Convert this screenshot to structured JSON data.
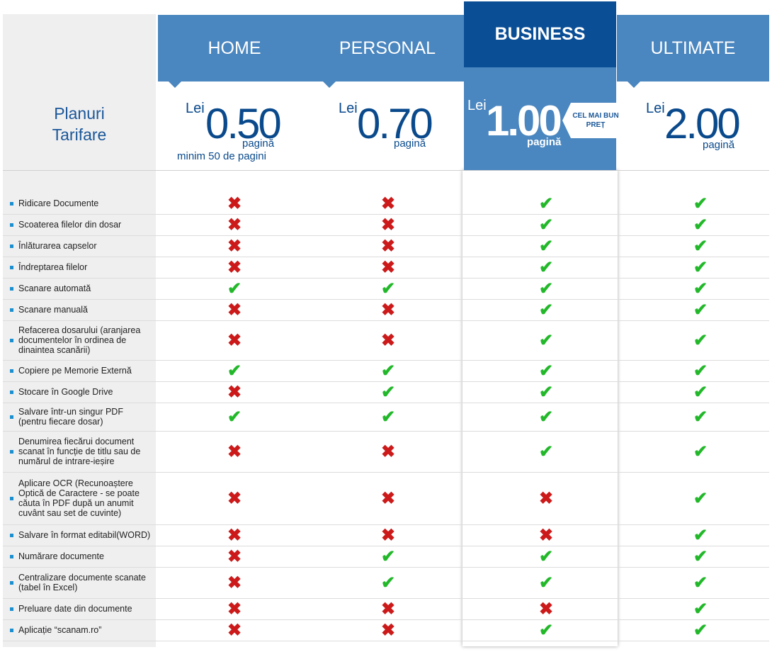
{
  "title": {
    "line1": "Planuri",
    "line2": "Tarifare"
  },
  "plans": [
    {
      "name": "HOME",
      "currency": "Lei",
      "price": "0.50",
      "unit": "pagină",
      "note": "minim 50 de pagini"
    },
    {
      "name": "PERSONAL",
      "currency": "Lei",
      "price": "0.70",
      "unit": "pagină"
    },
    {
      "name": "BUSINESS",
      "currency": "Lei",
      "price": "1.00",
      "unit": "pagină",
      "badge": "CEL MAI BUN PREȚ"
    },
    {
      "name": "ULTIMATE",
      "currency": "Lei",
      "price": "2.00",
      "unit": "pagină"
    }
  ],
  "icons": {
    "yes": "check-icon",
    "no": "cross-icon"
  },
  "colors": {
    "header": "#4a86bf",
    "featured": "#0a4e96",
    "yes": "#22b82a",
    "no": "#cc1a1a"
  },
  "features": [
    {
      "label": "Ridicare Documente",
      "values": [
        false,
        false,
        true,
        true
      ]
    },
    {
      "label": "Scoaterea filelor din dosar",
      "values": [
        false,
        false,
        true,
        true
      ]
    },
    {
      "label": "Înlăturarea capselor",
      "values": [
        false,
        false,
        true,
        true
      ]
    },
    {
      "label": "Îndreptarea filelor",
      "values": [
        false,
        false,
        true,
        true
      ]
    },
    {
      "label": "Scanare automată",
      "values": [
        true,
        true,
        true,
        true
      ]
    },
    {
      "label": "Scanare manuală",
      "values": [
        false,
        false,
        true,
        true
      ]
    },
    {
      "label": "Refacerea dosarului (aranjarea documentelor în ordinea de dinaintea scanării)",
      "values": [
        false,
        false,
        true,
        true
      ]
    },
    {
      "label": "Copiere pe Memorie Externă",
      "values": [
        true,
        true,
        true,
        true
      ]
    },
    {
      "label": "Stocare în Google Drive",
      "values": [
        false,
        true,
        true,
        true
      ]
    },
    {
      "label": "Salvare într-un singur PDF (pentru fiecare dosar)",
      "values": [
        true,
        true,
        true,
        true
      ]
    },
    {
      "label": "Denumirea fiecărui document scanat în funcție de titlu sau de numărul de intrare-ieșire",
      "values": [
        false,
        false,
        true,
        true
      ]
    },
    {
      "label": "Aplicare OCR (Recunoaștere Optică de Caractere - se poate căuta în PDF după un anumit cuvânt sau set de cuvinte)",
      "values": [
        false,
        false,
        false,
        true
      ]
    },
    {
      "label": "Salvare în format editabil(WORD)",
      "values": [
        false,
        false,
        false,
        true
      ]
    },
    {
      "label": "Numărare documente",
      "values": [
        false,
        true,
        true,
        true
      ]
    },
    {
      "label": "Centralizare documente scanate (tabel în Excel)",
      "values": [
        false,
        true,
        true,
        true
      ]
    },
    {
      "label": "Preluare date din documente",
      "values": [
        false,
        false,
        false,
        true
      ]
    },
    {
      "label": "Aplicație “scanam.ro”",
      "values": [
        false,
        false,
        true,
        true
      ]
    }
  ]
}
